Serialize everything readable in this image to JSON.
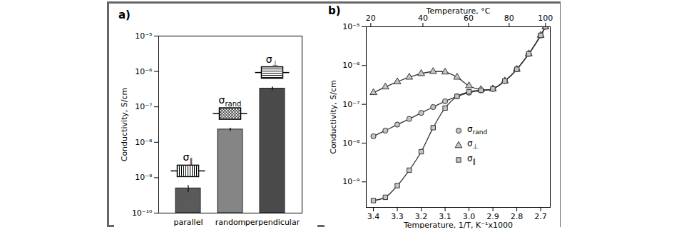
{
  "chart_data": [
    {
      "type": "bar",
      "title": "a)",
      "categories": [
        "parallel",
        "random",
        "perpendicular"
      ],
      "values": [
        5e-10,
        2.3e-08,
        3.3e-07
      ],
      "errors": [
        1e-10,
        2e-09,
        3e-08
      ],
      "colors": [
        "#5a5a5a",
        "#858585",
        "#4a4a4a"
      ],
      "log": "y",
      "ylabel": "Conductivity, S/cm",
      "ylim": [
        1e-10,
        1e-05
      ],
      "yticks": [
        {
          "value": 1e-10,
          "label": "10⁻¹⁰"
        },
        {
          "value": 1e-09,
          "label": "10⁻⁹"
        },
        {
          "value": 1e-08,
          "label": "10⁻⁸"
        },
        {
          "value": 1e-07,
          "label": "10⁻⁷"
        },
        {
          "value": 1e-06,
          "label": "10⁻⁶"
        },
        {
          "value": 1e-05,
          "label": "10⁻⁵"
        }
      ],
      "annotations": [
        {
          "text": "σ∥",
          "category": "parallel"
        },
        {
          "text": "σrand",
          "category": "random"
        },
        {
          "text": "σ⊥",
          "category": "perpendicular"
        }
      ]
    },
    {
      "type": "line",
      "title": "b)",
      "x": [
        3.4,
        3.35,
        3.3,
        3.25,
        3.2,
        3.15,
        3.1,
        3.05,
        3.0,
        2.95,
        2.9,
        2.85,
        2.8,
        2.75,
        2.7,
        2.68
      ],
      "series": [
        {
          "name": "σrand",
          "color": "#333333",
          "marker": "circle",
          "values": [
            1.5e-08,
            2.1e-08,
            3e-08,
            4.2e-08,
            6e-08,
            8.5e-08,
            1.2e-07,
            1.6e-07,
            2e-07,
            2.3e-07,
            2.5e-07,
            4e-07,
            8e-07,
            2e-06,
            6e-06,
            1e-05
          ]
        },
        {
          "name": "σ⊥",
          "color": "#333333",
          "marker": "triangle",
          "values": [
            2e-07,
            2.8e-07,
            3.8e-07,
            5e-07,
            6.2e-07,
            7e-07,
            6.8e-07,
            5e-07,
            3e-07,
            2.4e-07,
            2.5e-07,
            4e-07,
            8e-07,
            2e-06,
            6e-06,
            1e-05
          ]
        },
        {
          "name": "σ∥",
          "color": "#333333",
          "marker": "square",
          "values": [
            3.3e-10,
            4e-10,
            8e-10,
            2e-09,
            6e-09,
            2.5e-08,
            8e-08,
            1.6e-07,
            2.1e-07,
            2.3e-07,
            2.5e-07,
            4e-07,
            8e-07,
            2e-06,
            6e-06,
            1e-05
          ]
        }
      ],
      "xlabel": "Temperature, 1/T, K⁻¹x1000",
      "x2label": "Temperature, °C",
      "xlim": [
        3.43,
        2.66
      ],
      "xticks": [
        3.4,
        3.3,
        3.2,
        3.1,
        {
          "value": 3,
          "label": "3.0"
        },
        2.9,
        2.8,
        2.7
      ],
      "x2ticks": [
        {
          "value": 3.411,
          "label": "20"
        },
        {
          "value": 3.193,
          "label": "40"
        },
        {
          "value": 3.002,
          "label": "60"
        },
        {
          "value": 2.832,
          "label": "80"
        },
        {
          "value": 2.68,
          "label": "100"
        }
      ],
      "log": "y",
      "ylabel": "Conductivity, S/cm",
      "ylim": [
        2.2e-10,
        1e-05
      ],
      "yticks": [
        {
          "value": 1e-09,
          "label": "10⁻⁹"
        },
        {
          "value": 1e-08,
          "label": "10⁻⁸"
        },
        {
          "value": 1e-07,
          "label": "10⁻⁷"
        },
        {
          "value": 1e-06,
          "label": "10⁻⁶"
        },
        {
          "value": 1e-05,
          "label": "10⁻⁵"
        }
      ],
      "legend": "right"
    }
  ]
}
